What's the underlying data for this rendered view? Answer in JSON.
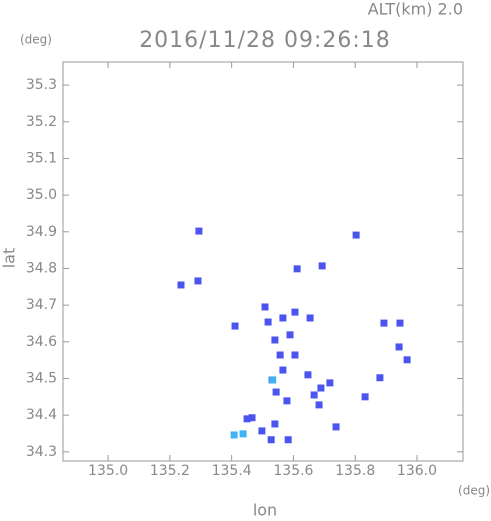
{
  "chart_data": {
    "type": "scatter",
    "title": "2016/11/28 09:26:18",
    "subtitle": "ALT(km) 2.0",
    "y_unit": "(deg)",
    "x_unit": "(deg)",
    "xlabel": "lon",
    "ylabel": "lat",
    "xlim": [
      134.854,
      136.149
    ],
    "ylim": [
      34.275,
      35.363
    ],
    "xticks": [
      {
        "value": 135,
        "label": "135.0"
      },
      135.2,
      135.4,
      135.6,
      135.8,
      {
        "value": 136,
        "label": "136.0"
      }
    ],
    "yticks": [
      34.3,
      34.4,
      34.5,
      34.6,
      34.7,
      34.8,
      34.9,
      {
        "value": 35,
        "label": "35.0"
      },
      35.1,
      35.2,
      35.3
    ],
    "series": [
      {
        "color": "#4b55ee",
        "x": [
          135.294,
          135.236,
          135.291,
          135.803,
          135.612,
          135.693,
          135.411,
          135.508,
          135.518,
          135.566,
          135.605,
          135.654,
          135.589,
          135.54,
          135.557,
          135.566,
          135.531,
          135.544,
          135.605,
          135.647,
          135.689,
          135.683,
          135.667,
          135.893,
          135.945,
          135.942,
          135.968,
          135.88,
          135.832,
          135.738,
          135.466,
          135.45,
          135.54,
          135.498,
          135.528,
          135.583,
          135.718,
          135.579
        ],
        "y": [
          34.902,
          34.755,
          34.766,
          34.891,
          34.799,
          34.807,
          34.643,
          34.695,
          34.654,
          34.665,
          34.681,
          34.665,
          34.619,
          34.605,
          34.564,
          34.523,
          34.496,
          34.463,
          34.564,
          34.51,
          34.474,
          34.428,
          34.455,
          34.651,
          34.651,
          34.586,
          34.551,
          34.502,
          34.45,
          34.368,
          34.393,
          34.39,
          34.376,
          34.357,
          34.333,
          34.333,
          34.488,
          34.439
        ]
      },
      {
        "color": "#3fb4f0",
        "x": [
          135.437,
          135.408,
          135.533
        ],
        "y": [
          34.349,
          34.346,
          34.496
        ]
      }
    ]
  }
}
